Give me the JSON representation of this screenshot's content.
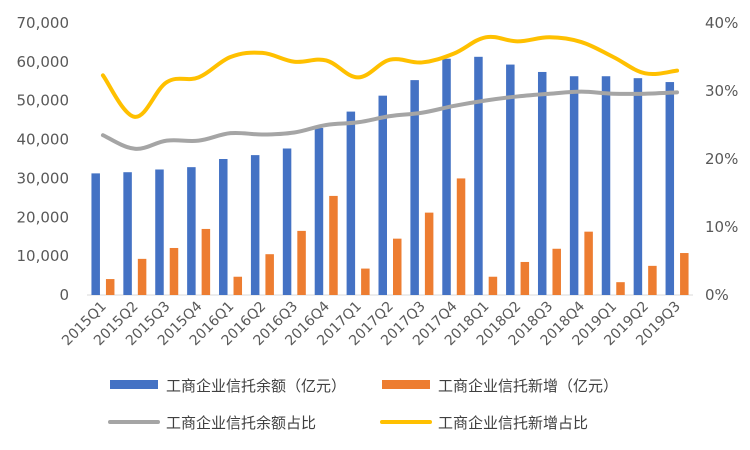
{
  "chart_data": {
    "type": "bar",
    "categories": [
      "2015Q1",
      "2015Q2",
      "2015Q3",
      "2015Q4",
      "2016Q1",
      "2016Q2",
      "2016Q3",
      "2016Q4",
      "2017Q1",
      "2017Q2",
      "2017Q3",
      "2017Q4",
      "2018Q1",
      "2018Q2",
      "2018Q3",
      "2018Q4",
      "2019Q1",
      "2019Q2",
      "2019Q3"
    ],
    "series": [
      {
        "name": "工商企业信托余额（亿元）",
        "type": "bar",
        "axis": "left",
        "color": "#4472C4",
        "values": [
          31300,
          31600,
          32300,
          32900,
          35000,
          36000,
          37700,
          43000,
          47200,
          51300,
          55300,
          60800,
          61300,
          59300,
          57400,
          56300,
          56300,
          55800,
          54800
        ]
      },
      {
        "name": "工商企业信托新增（亿元）",
        "type": "bar",
        "axis": "left",
        "color": "#ED7D31",
        "values": [
          4100,
          9300,
          12100,
          17000,
          4700,
          10500,
          16500,
          25500,
          6800,
          14500,
          21200,
          30000,
          4700,
          8500,
          11900,
          16300,
          3300,
          7500,
          10800
        ]
      },
      {
        "name": "工商企业信托余额占比",
        "type": "line",
        "axis": "right",
        "color": "#A5A5A5",
        "values": [
          23.5,
          21.5,
          22.7,
          22.7,
          23.8,
          23.6,
          23.9,
          25.0,
          25.4,
          26.3,
          26.8,
          27.8,
          28.6,
          29.2,
          29.6,
          29.9,
          29.6,
          29.6,
          29.8
        ]
      },
      {
        "name": "工商企业信托新增占比",
        "type": "line",
        "axis": "right",
        "color": "#FFC000",
        "values": [
          32.3,
          26.2,
          31.3,
          32.0,
          35.0,
          35.6,
          34.3,
          34.5,
          32.0,
          34.6,
          34.2,
          35.5,
          37.9,
          37.3,
          37.9,
          37.2,
          35.0,
          32.6,
          33.0
        ]
      }
    ],
    "y_left": {
      "min": 0,
      "max": 70000,
      "step": 10000,
      "tick_labels": [
        "0",
        "10,000",
        "20,000",
        "30,000",
        "40,000",
        "50,000",
        "60,000",
        "70,000"
      ]
    },
    "y_right": {
      "min": 0,
      "max": 40,
      "step": 10,
      "tick_labels": [
        "0%",
        "10%",
        "20%",
        "30%",
        "40%"
      ]
    },
    "grid": false,
    "legend_position": "bottom"
  }
}
